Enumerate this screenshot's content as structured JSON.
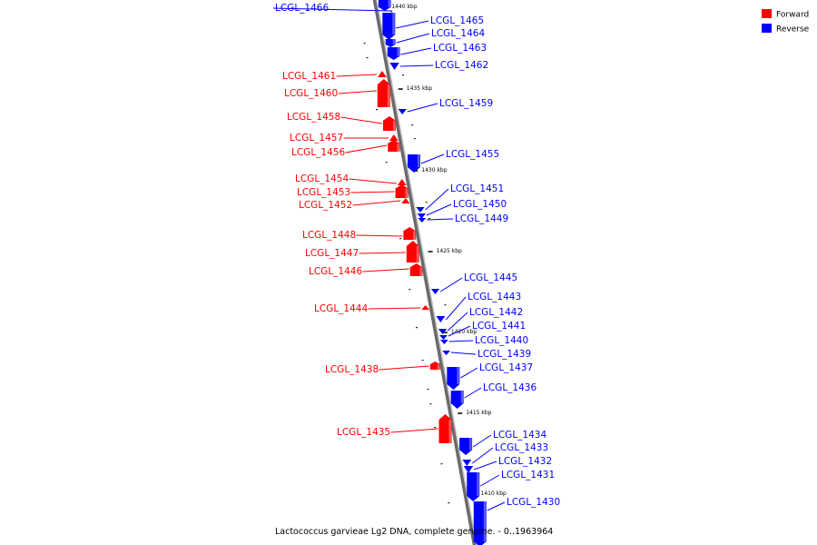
{
  "caption": "Lactococcus garvieae Lg2 DNA, complete genome. - 0..1963964",
  "legend": [
    {
      "label": "Forward",
      "color": "#ff0000"
    },
    {
      "label": "Reverse",
      "color": "#0000ff"
    }
  ],
  "scale_ticks": [
    "1440 kbp",
    "1435 kbp",
    "1430 kbp",
    "1425 kbp",
    "1420 kbp",
    "1415 kbp",
    "1410 kbp"
  ],
  "genes": [
    {
      "name": "LCGL_1466",
      "strand": "reverse"
    },
    {
      "name": "LCGL_1465",
      "strand": "reverse"
    },
    {
      "name": "LCGL_1464",
      "strand": "reverse"
    },
    {
      "name": "LCGL_1463",
      "strand": "reverse"
    },
    {
      "name": "LCGL_1462",
      "strand": "reverse"
    },
    {
      "name": "LCGL_1461",
      "strand": "forward"
    },
    {
      "name": "LCGL_1460",
      "strand": "forward"
    },
    {
      "name": "LCGL_1459",
      "strand": "reverse"
    },
    {
      "name": "LCGL_1458",
      "strand": "forward"
    },
    {
      "name": "LCGL_1457",
      "strand": "forward"
    },
    {
      "name": "LCGL_1456",
      "strand": "forward"
    },
    {
      "name": "LCGL_1455",
      "strand": "reverse"
    },
    {
      "name": "LCGL_1454",
      "strand": "forward"
    },
    {
      "name": "LCGL_1453",
      "strand": "forward"
    },
    {
      "name": "LCGL_1452",
      "strand": "forward"
    },
    {
      "name": "LCGL_1451",
      "strand": "reverse"
    },
    {
      "name": "LCGL_1450",
      "strand": "reverse"
    },
    {
      "name": "LCGL_1449",
      "strand": "reverse"
    },
    {
      "name": "LCGL_1448",
      "strand": "forward"
    },
    {
      "name": "LCGL_1447",
      "strand": "forward"
    },
    {
      "name": "LCGL_1446",
      "strand": "forward"
    },
    {
      "name": "LCGL_1445",
      "strand": "reverse"
    },
    {
      "name": "LCGL_1444",
      "strand": "forward"
    },
    {
      "name": "LCGL_1443",
      "strand": "reverse"
    },
    {
      "name": "LCGL_1442",
      "strand": "reverse"
    },
    {
      "name": "LCGL_1441",
      "strand": "reverse"
    },
    {
      "name": "LCGL_1440",
      "strand": "reverse"
    },
    {
      "name": "LCGL_1439",
      "strand": "reverse"
    },
    {
      "name": "LCGL_1438",
      "strand": "forward"
    },
    {
      "name": "LCGL_1437",
      "strand": "reverse"
    },
    {
      "name": "LCGL_1436",
      "strand": "reverse"
    },
    {
      "name": "LCGL_1435",
      "strand": "forward"
    },
    {
      "name": "LCGL_1434",
      "strand": "reverse"
    },
    {
      "name": "LCGL_1433",
      "strand": "reverse"
    },
    {
      "name": "LCGL_1432",
      "strand": "reverse"
    },
    {
      "name": "LCGL_1431",
      "strand": "reverse"
    },
    {
      "name": "LCGL_1430",
      "strand": "reverse"
    }
  ]
}
